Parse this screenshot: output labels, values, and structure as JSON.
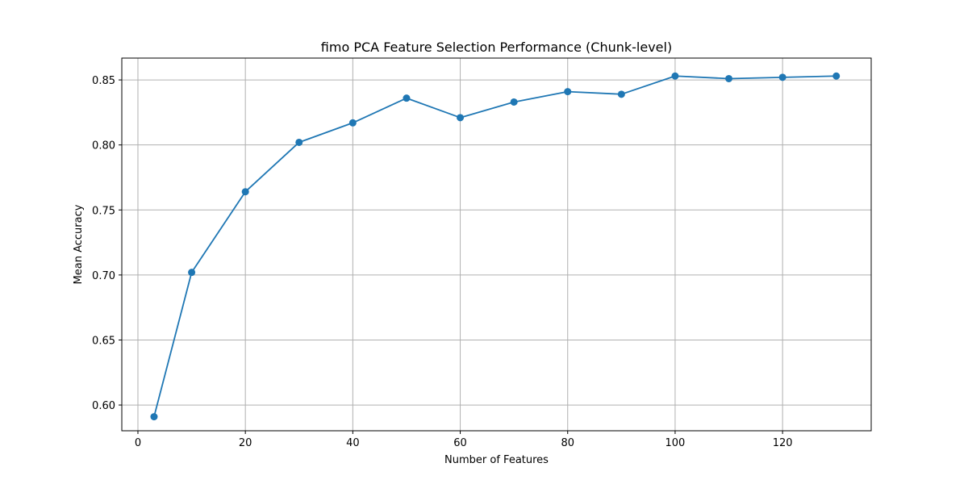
{
  "chart_data": {
    "type": "line",
    "title": "fimo PCA Feature Selection Performance (Chunk-level)",
    "xlabel": "Number of Features",
    "ylabel": "Mean Accuracy",
    "xlim": [
      -3,
      136.5
    ],
    "ylim": [
      0.5802,
      0.8668
    ],
    "xticks": [
      0,
      20,
      40,
      60,
      80,
      100,
      120
    ],
    "xtick_labels": [
      "0",
      "20",
      "40",
      "60",
      "80",
      "100",
      "120"
    ],
    "yticks": [
      0.6,
      0.65,
      0.7,
      0.75,
      0.8,
      0.85
    ],
    "ytick_labels": [
      "0.60",
      "0.65",
      "0.70",
      "0.75",
      "0.80",
      "0.85"
    ],
    "grid": true,
    "color": "#1f77b4",
    "marker": "circle",
    "series": [
      {
        "x": [
          3,
          10,
          20,
          30,
          40,
          50,
          60,
          70,
          80,
          90,
          100,
          110,
          120,
          130
        ],
        "y": [
          0.591,
          0.702,
          0.764,
          0.802,
          0.817,
          0.836,
          0.821,
          0.833,
          0.841,
          0.839,
          0.853,
          0.851,
          0.852,
          0.853
        ]
      }
    ]
  }
}
